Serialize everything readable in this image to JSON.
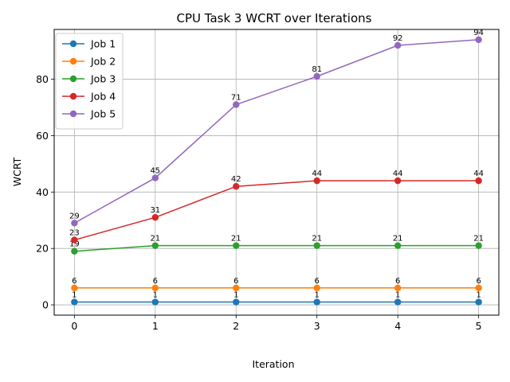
{
  "chart_data": {
    "type": "line",
    "title": "CPU Task 3 WCRT over Iterations",
    "xlabel": "Iteration",
    "ylabel": "WCRT",
    "x": [
      0,
      1,
      2,
      3,
      4,
      5
    ],
    "xticks": [
      "0",
      "1",
      "2",
      "3",
      "4",
      "5"
    ],
    "yticks": [
      "0",
      "20",
      "40",
      "60",
      "80"
    ],
    "xlim": [
      -0.25,
      5.25
    ],
    "ylim": [
      -3.65,
      97.65
    ],
    "grid": true,
    "legend_position": "upper-left",
    "series": [
      {
        "name": "Job 1",
        "color": "#1f77b4",
        "values": [
          1,
          1,
          1,
          1,
          1,
          1
        ],
        "labels": [
          "1",
          "1",
          "1",
          "1",
          "1",
          "1"
        ]
      },
      {
        "name": "Job 2",
        "color": "#ff7f0e",
        "values": [
          6,
          6,
          6,
          6,
          6,
          6
        ],
        "labels": [
          "6",
          "6",
          "6",
          "6",
          "6",
          "6"
        ]
      },
      {
        "name": "Job 3",
        "color": "#2ca02c",
        "values": [
          19,
          21,
          21,
          21,
          21,
          21
        ],
        "labels": [
          "19",
          "21",
          "21",
          "21",
          "21",
          "21"
        ]
      },
      {
        "name": "Job 4",
        "color": "#d62728",
        "values": [
          23,
          31,
          42,
          44,
          44,
          44
        ],
        "labels": [
          "23",
          "31",
          "42",
          "44",
          "44",
          "44"
        ]
      },
      {
        "name": "Job 5",
        "color": "#9467bd",
        "values": [
          29,
          45,
          71,
          81,
          92,
          94
        ],
        "labels": [
          "29",
          "45",
          "71",
          "81",
          "92",
          "94"
        ]
      }
    ]
  }
}
